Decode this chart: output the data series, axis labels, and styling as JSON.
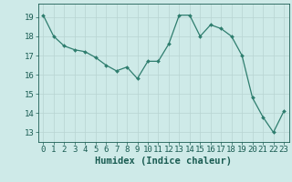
{
  "x": [
    0,
    1,
    2,
    3,
    4,
    5,
    6,
    7,
    8,
    9,
    10,
    11,
    12,
    13,
    14,
    15,
    16,
    17,
    18,
    19,
    20,
    21,
    22,
    23
  ],
  "y": [
    19.1,
    18.0,
    17.5,
    17.3,
    17.2,
    16.9,
    16.5,
    16.2,
    16.4,
    15.8,
    16.7,
    16.7,
    17.6,
    19.1,
    19.1,
    18.0,
    18.6,
    18.4,
    18.0,
    17.0,
    14.8,
    13.8,
    13.0,
    14.1
  ],
  "line_color": "#2e7d6e",
  "marker": "D",
  "marker_size": 2.0,
  "bg_color": "#ceeae8",
  "grid_color_major": "#b8d4d2",
  "grid_color_minor": "#d0e8e6",
  "xlabel": "Humidex (Indice chaleur)",
  "ylim": [
    12.5,
    19.7
  ],
  "xlim": [
    -0.5,
    23.5
  ],
  "yticks": [
    13,
    14,
    15,
    16,
    17,
    18,
    19
  ],
  "xticks": [
    0,
    1,
    2,
    3,
    4,
    5,
    6,
    7,
    8,
    9,
    10,
    11,
    12,
    13,
    14,
    15,
    16,
    17,
    18,
    19,
    20,
    21,
    22,
    23
  ],
  "tick_color": "#1a5c52",
  "label_color": "#1a5c52",
  "font_size": 6.5,
  "label_font_size": 7.5
}
